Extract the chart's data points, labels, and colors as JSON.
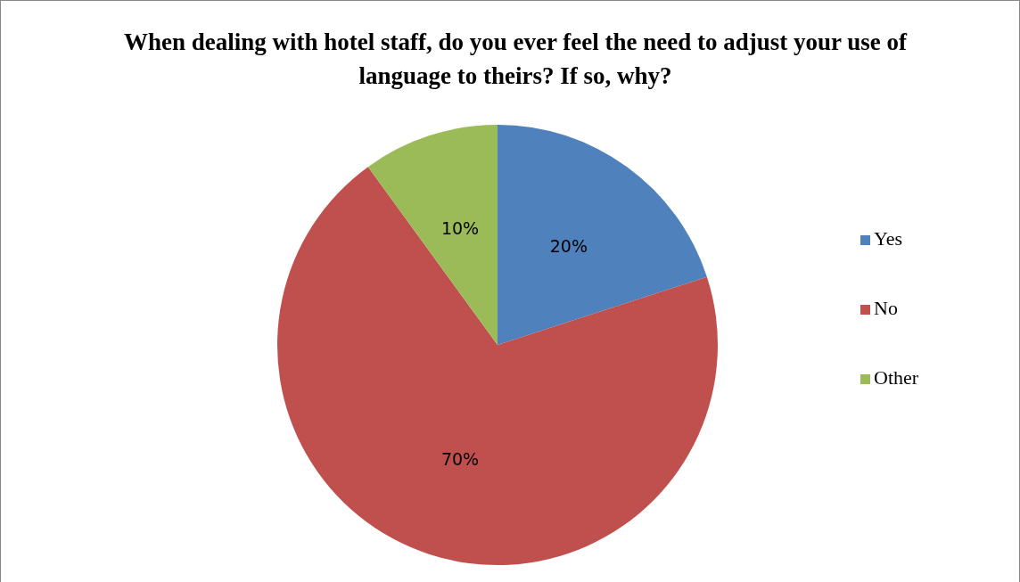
{
  "chart_data": {
    "type": "pie",
    "title": "When dealing with hotel staff, do you ever feel the need to adjust your use of language to theirs? If so, why?",
    "categories": [
      "Yes",
      "No",
      "Other"
    ],
    "values": [
      20,
      70,
      10
    ],
    "colors": [
      "#4f81bd",
      "#c0504d",
      "#9bbb59"
    ],
    "value_labels": [
      "20%",
      "70%",
      "10%"
    ],
    "legend": "right"
  }
}
